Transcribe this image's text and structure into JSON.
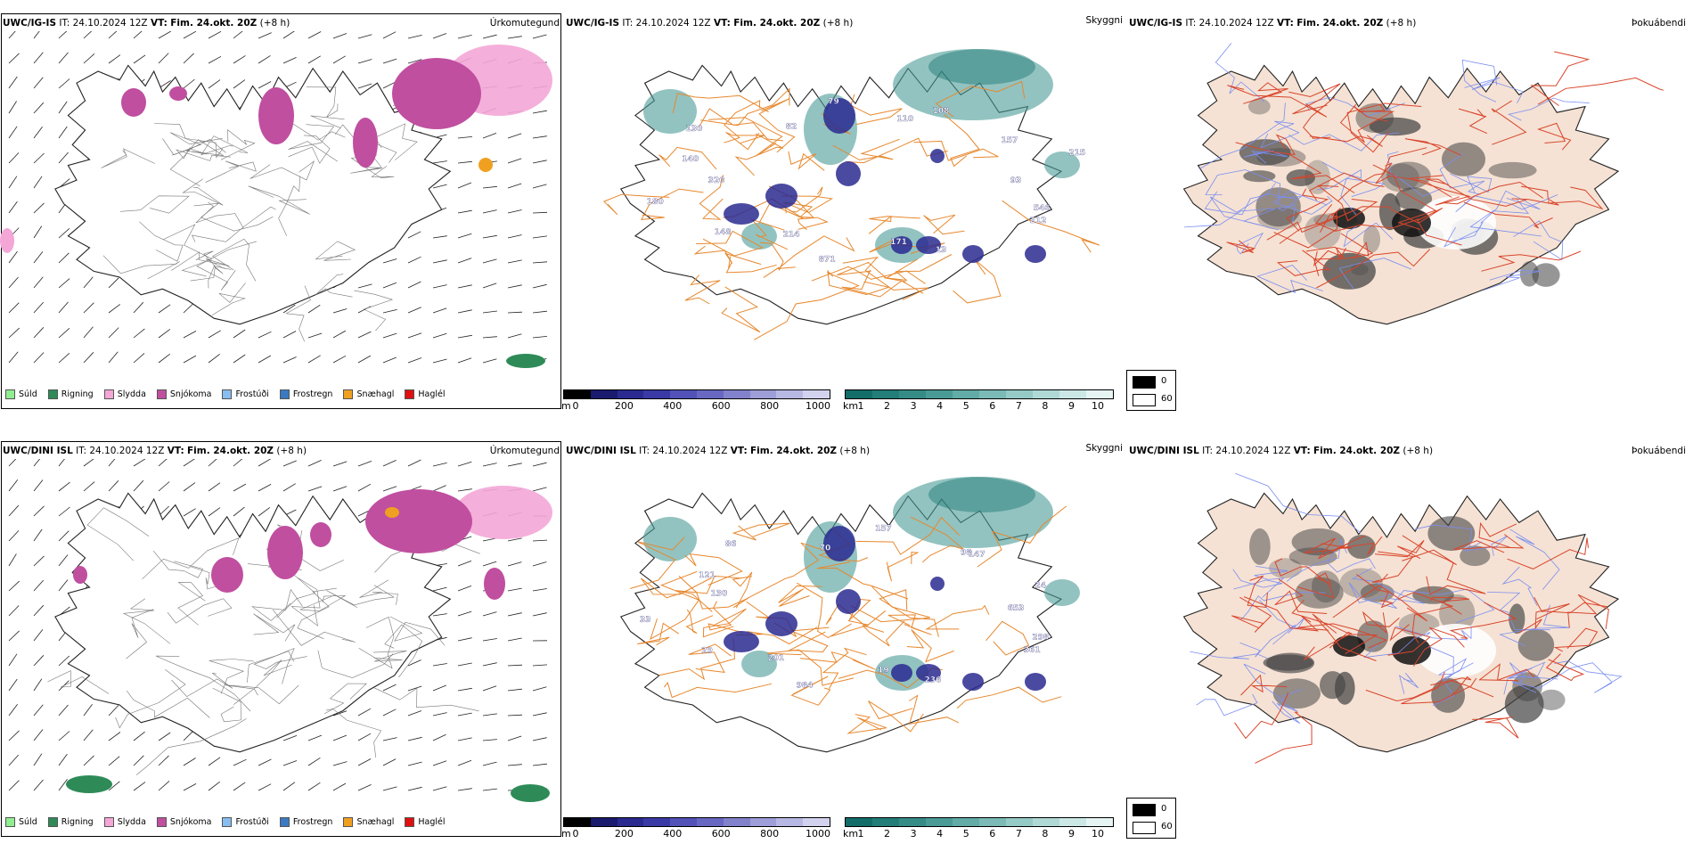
{
  "rows": [
    {
      "id": "ig",
      "panels": [
        {
          "model": "UWC/IG-IS",
          "it_label": "IT:",
          "it_value": "24.10.2024 12Z",
          "vt_label": "VT:",
          "vt_value": "Fim. 24.okt. 20Z",
          "lead": "(+8 h)",
          "title": "Úrkomutegund"
        },
        {
          "model": "UWC/IG-IS",
          "it_label": "IT:",
          "it_value": "24.10.2024 12Z",
          "vt_label": "VT:",
          "vt_value": "Fim. 24.okt. 20Z",
          "lead": "(+8 h)",
          "title": "Skyggni"
        },
        {
          "model": "UWC/IG-IS",
          "it_label": "IT:",
          "it_value": "24.10.2024 12Z",
          "vt_label": "VT:",
          "vt_value": "Fim. 24.okt. 20Z",
          "lead": "(+8 h)",
          "title": "Þokuábendi"
        }
      ],
      "ceiling_labels": [
        "93",
        "546",
        "212",
        "13",
        "171",
        "871",
        "214",
        "148",
        "180",
        "320",
        "140",
        "130",
        "82",
        "79",
        "110",
        "108",
        "157",
        "215"
      ]
    },
    {
      "id": "dini",
      "panels": [
        {
          "model": "UWC/DINI ISL",
          "it_label": "IT:",
          "it_value": "24.10.2024 12Z",
          "vt_label": "VT:",
          "vt_value": "Fim. 24.okt. 20Z",
          "lead": "(+8 h)",
          "title": "Úrkomutegund"
        },
        {
          "model": "UWC/DINI ISL",
          "it_label": "IT:",
          "it_value": "24.10.2024 12Z",
          "vt_label": "VT:",
          "vt_value": "Fim. 24.okt. 20Z",
          "lead": "(+8 h)",
          "title": "Skyggni"
        },
        {
          "model": "UWC/DINI ISL",
          "it_label": "IT:",
          "it_value": "24.10.2024 12Z",
          "vt_label": "VT:",
          "vt_value": "Fim. 24.okt. 20Z",
          "lead": "(+8 h)",
          "title": "Þokuábendi"
        }
      ],
      "ceiling_labels": [
        "653",
        "298",
        "361",
        "236",
        "19",
        "984",
        "201",
        "29",
        "33",
        "130",
        "121",
        "86",
        "70",
        "157",
        "98",
        "147",
        "24"
      ]
    }
  ],
  "precip_legend": [
    {
      "label": "Súld",
      "color": "#90ee90"
    },
    {
      "label": "Rigning",
      "color": "#2e8b57"
    },
    {
      "label": "Slydda",
      "color": "#f4a6d7"
    },
    {
      "label": "Snjókoma",
      "color": "#c04fa0"
    },
    {
      "label": "Frostúði",
      "color": "#87bdf0"
    },
    {
      "label": "Frostregn",
      "color": "#3a7ac2"
    },
    {
      "label": "Snæhagl",
      "color": "#f0a020"
    },
    {
      "label": "Haglél",
      "color": "#e01010"
    }
  ],
  "ceiling_scale": {
    "unit": "m",
    "ticks": [
      "0",
      "200",
      "400",
      "600",
      "800",
      "1000"
    ],
    "colors": [
      "#000000",
      "#1a1a6e",
      "#2a2a90",
      "#3a3aa6",
      "#5252b8",
      "#6868c2",
      "#8282cc",
      "#9e9ed8",
      "#b8b8e4",
      "#d2d2ee"
    ]
  },
  "visibility_scale": {
    "unit": "km",
    "ticks": [
      "1",
      "2",
      "3",
      "4",
      "5",
      "6",
      "7",
      "8",
      "9",
      "10"
    ],
    "colors": [
      "#136e6a",
      "#237d78",
      "#358c87",
      "#4a9b96",
      "#62aba6",
      "#7bbab6",
      "#95cac6",
      "#b0d9d6",
      "#cbe8e6",
      "#e6f4f3"
    ]
  },
  "fog_legend": [
    {
      "label": "0",
      "color": "#000000"
    },
    {
      "label": "60",
      "color": "#ffffff"
    }
  ],
  "colors": {
    "land_fill": "#f5e2d4",
    "coast": "#222222",
    "roads_orange": "#e7882e",
    "roads_red": "#d9452b",
    "rivers": "#7b8ef0",
    "wind_barb": "#222222"
  }
}
